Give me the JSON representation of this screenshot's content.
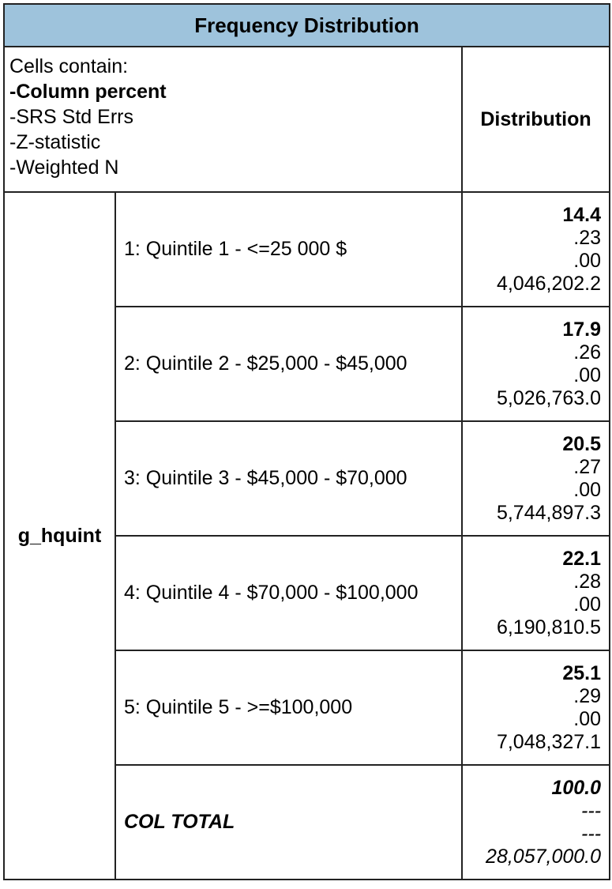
{
  "table": {
    "title": "Frequency Distribution",
    "legend": {
      "heading": "Cells contain:",
      "items": [
        "-Column percent",
        "-SRS Std Errs",
        "-Z-statistic",
        "-Weighted N"
      ]
    },
    "column_header": "Distribution",
    "variable": "g_hquint",
    "rows": [
      {
        "label": "1: Quintile 1 - <=25 000 $",
        "percent": "14.4",
        "std_err": ".23",
        "z_stat": ".00",
        "weighted_n": "4,046,202.2"
      },
      {
        "label": "2: Quintile 2 - $25,000 - $45,000",
        "percent": "17.9",
        "std_err": ".26",
        "z_stat": ".00",
        "weighted_n": "5,026,763.0"
      },
      {
        "label": "3: Quintile 3 - $45,000 - $70,000",
        "percent": "20.5",
        "std_err": ".27",
        "z_stat": ".00",
        "weighted_n": "5,744,897.3"
      },
      {
        "label": "4: Quintile 4 - $70,000 - $100,000",
        "percent": "22.1",
        "std_err": ".28",
        "z_stat": ".00",
        "weighted_n": "6,190,810.5"
      },
      {
        "label": "5: Quintile 5 - >=$100,000",
        "percent": "25.1",
        "std_err": ".29",
        "z_stat": ".00",
        "weighted_n": "7,048,327.1"
      }
    ],
    "total": {
      "label": "COL TOTAL",
      "percent": "100.0",
      "std_err": "---",
      "z_stat": "---",
      "weighted_n": "28,057,000.0"
    }
  },
  "colors": {
    "title_background": "#9ec3dc",
    "border": "#222222"
  }
}
